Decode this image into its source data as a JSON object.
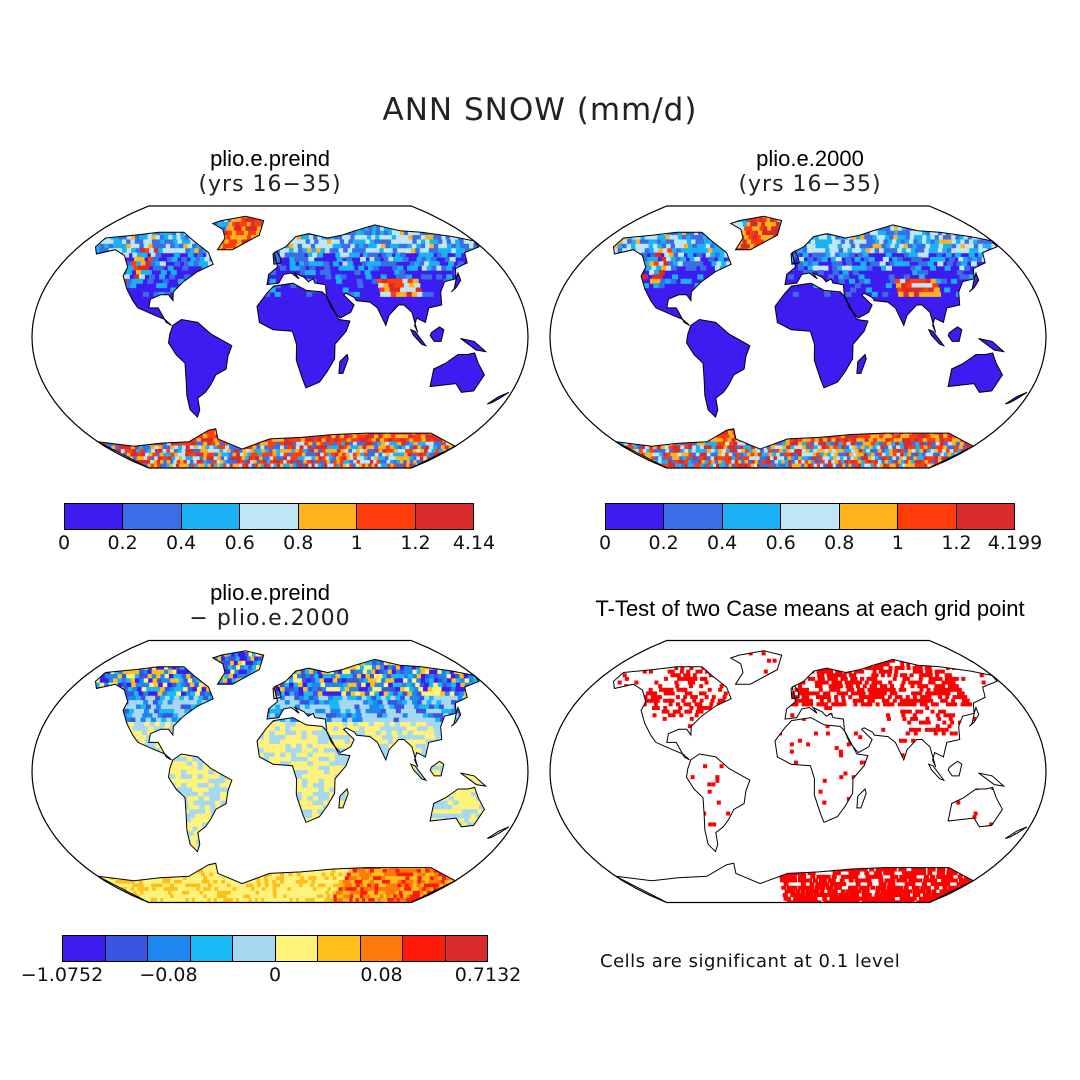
{
  "figure": {
    "title": "ANN SNOW (mm/d)"
  },
  "panels": [
    {
      "id": "preind",
      "title": "plio.e.preind",
      "subtitle": "(yrs 16−35)",
      "colorbar": {
        "colors": [
          "#3d1cf2",
          "#3a6ee6",
          "#1ab2f5",
          "#bfe6f5",
          "#ffb21c",
          "#ff3c0a",
          "#d92b2b"
        ],
        "tick_labels": [
          "0",
          "0.2",
          "0.4",
          "0.6",
          "0.8",
          "1",
          "1.2",
          "4.14"
        ]
      }
    },
    {
      "id": "p2000",
      "title": "plio.e.2000",
      "subtitle": "(yrs 16−35)",
      "colorbar": {
        "colors": [
          "#3d1cf2",
          "#3a6ee6",
          "#1ab2f5",
          "#bfe6f5",
          "#ffb21c",
          "#ff3c0a",
          "#d92b2b"
        ],
        "tick_labels": [
          "0",
          "0.2",
          "0.4",
          "0.6",
          "0.8",
          "1",
          "1.2",
          "4.199"
        ]
      }
    },
    {
      "id": "diff",
      "title": "plio.e.preind",
      "subtitle": "− plio.e.2000",
      "colorbar": {
        "colors": [
          "#3d1cf2",
          "#3a55e0",
          "#1e88f0",
          "#1ab8f5",
          "#a6d8f2",
          "#fff27a",
          "#ffbf1a",
          "#ff7a0a",
          "#ff1a0a",
          "#d92b2b"
        ],
        "tick_labels": [
          "−1.0752",
          "−0.08",
          "0",
          "0.08",
          "0.7132"
        ]
      }
    },
    {
      "id": "ttest",
      "title": "T-Test of two Case means at each grid point",
      "note": "Cells are significant at 0.1 level",
      "significant_color": "#ff0000"
    }
  ]
}
